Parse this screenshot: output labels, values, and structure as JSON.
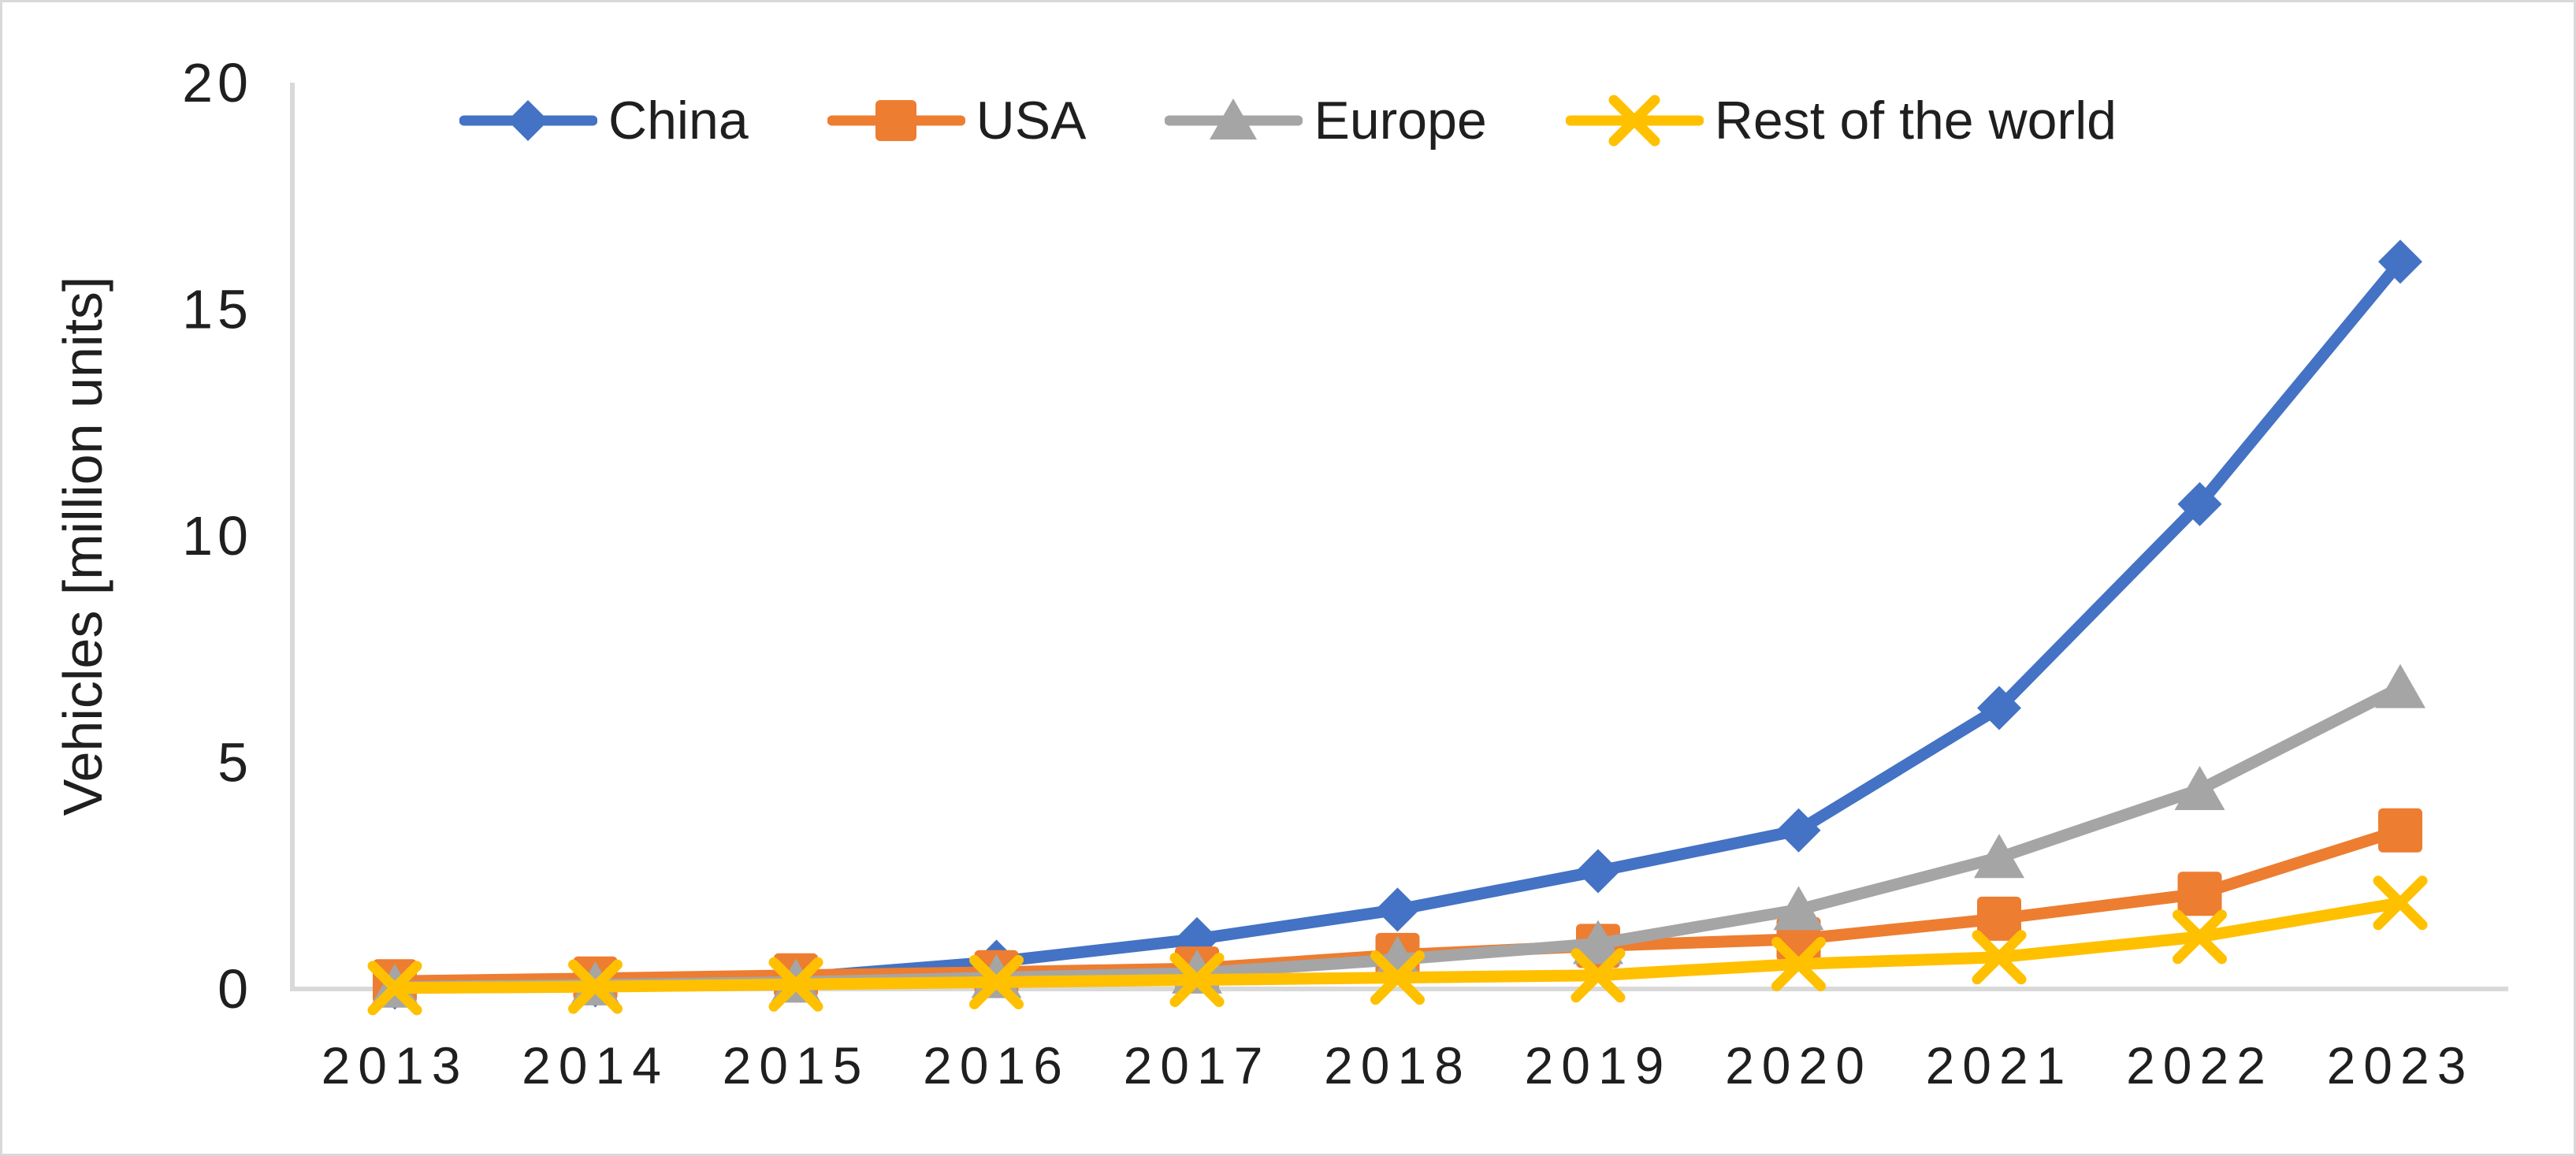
{
  "frame": {
    "background": "#ffffff",
    "border_color": "#d9d9d9"
  },
  "chart_data": {
    "type": "line",
    "title": "",
    "xlabel": "",
    "ylabel": "Vehicles [million units]",
    "categories": [
      "2013",
      "2014",
      "2015",
      "2016",
      "2017",
      "2018",
      "2019",
      "2020",
      "2021",
      "2022",
      "2023"
    ],
    "series": [
      {
        "name": "China",
        "color": "#4472C4",
        "marker": "diamond",
        "values": [
          0.03,
          0.08,
          0.25,
          0.6,
          1.1,
          1.75,
          2.6,
          3.5,
          6.2,
          10.7,
          16.05
        ]
      },
      {
        "name": "USA",
        "color": "#ED7D31",
        "marker": "square",
        "values": [
          0.17,
          0.23,
          0.3,
          0.37,
          0.45,
          0.75,
          0.95,
          1.1,
          1.55,
          2.1,
          3.5
        ]
      },
      {
        "name": "Europe",
        "color": "#A5A5A5",
        "marker": "triangle",
        "values": [
          0.04,
          0.09,
          0.15,
          0.25,
          0.35,
          0.65,
          1.0,
          1.75,
          2.9,
          4.4,
          6.65
        ]
      },
      {
        "name": "Rest of the world",
        "color": "#FFC000",
        "marker": "x",
        "values": [
          0.02,
          0.05,
          0.1,
          0.15,
          0.2,
          0.25,
          0.3,
          0.55,
          0.7,
          1.15,
          1.9
        ]
      }
    ],
    "ylim": [
      0,
      20
    ],
    "yticks": [
      0,
      5,
      10,
      15,
      20
    ],
    "grid": false,
    "legend_position": "top",
    "axis_color": "#d9d9d9",
    "text_color": "#1f1f1f"
  }
}
